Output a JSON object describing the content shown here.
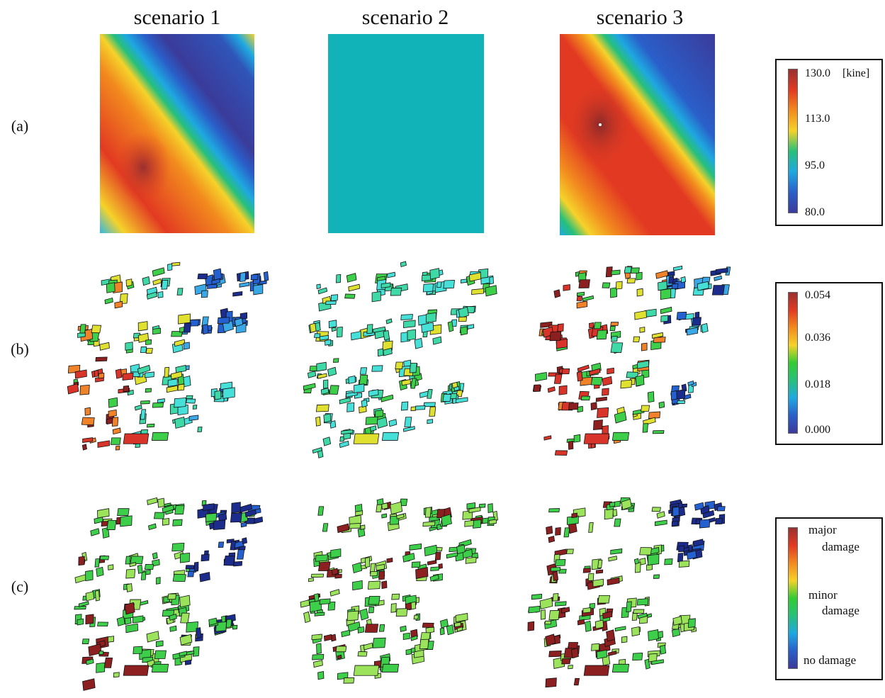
{
  "columns": [
    "scenario 1",
    "scenario 2",
    "scenario 3"
  ],
  "rows": [
    "(a)",
    "(b)",
    "(c)"
  ],
  "legend_a": {
    "unit": "[kine]",
    "ticks": [
      "130.0",
      "113.0",
      "95.0",
      "80.0"
    ]
  },
  "legend_b": {
    "ticks": [
      "0.054",
      "0.036",
      "0.018",
      "0.000"
    ]
  },
  "legend_c": {
    "labels": [
      "major",
      "damage",
      "minor",
      "damage",
      "no damage"
    ]
  },
  "colors": {
    "scale": [
      "#3b3b9a",
      "#2a5fc9",
      "#1fa8e0",
      "#27c07a",
      "#33cc33",
      "#c8e028",
      "#f5d22a",
      "#f28a1e",
      "#e23a22",
      "#9a3030"
    ],
    "scenario2_uniform": "#12b3b8"
  }
}
